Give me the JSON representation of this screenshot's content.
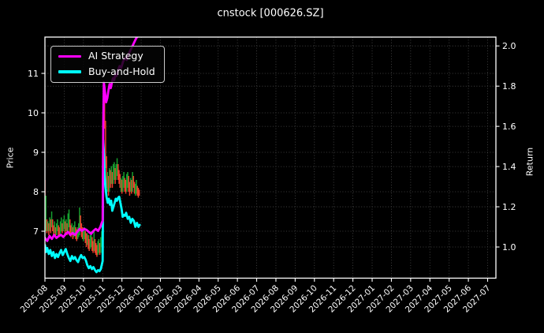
{
  "page": {
    "title": "cnstock [000626.SZ]"
  },
  "legend": {
    "items": [
      {
        "label": "AI Strategy",
        "color": "#ff00ff"
      },
      {
        "label": "Buy-and-Hold",
        "color": "#00ffff"
      }
    ]
  },
  "chart_data": {
    "type": "line",
    "title": "cnstock [000626.SZ]",
    "grid": true,
    "legend_position": "upper left",
    "background": "#000000",
    "frame_color": "#ffffff",
    "grid_color": "#4d4d4d",
    "x_unit": "months since 2025-08",
    "xlim": [
      0,
      23.43
    ],
    "x_ticks": [
      "2025-08",
      "2025-09",
      "2025-10",
      "2025-11",
      "2025-12",
      "2026-01",
      "2026-02",
      "2026-03",
      "2026-04",
      "2026-05",
      "2026-06",
      "2026-07",
      "2026-08",
      "2026-09",
      "2026-10",
      "2026-11",
      "2026-12",
      "2027-01",
      "2027-02",
      "2027-03",
      "2027-04",
      "2027-05",
      "2027-06",
      "2027-07"
    ],
    "left_axis": {
      "label": "Price",
      "lim": [
        5.81,
        11.92
      ],
      "ticks": [
        7,
        8,
        9,
        10,
        11
      ],
      "tick_labels": [
        "7",
        "8",
        "9",
        "10",
        "11"
      ]
    },
    "right_axis": {
      "label": "Return",
      "lim": [
        0.845,
        2.044
      ],
      "ticks": [
        1.0,
        1.2,
        1.4,
        1.6,
        1.8,
        2.0
      ],
      "tick_labels": [
        "1.0",
        "1.2",
        "1.4",
        "1.6",
        "1.8",
        "2.0"
      ]
    },
    "series": [
      {
        "name": "AI Strategy",
        "axis": "right",
        "color": "#ff00ff",
        "width": 2.8,
        "points": [
          [
            0,
            1.045
          ],
          [
            0.12,
            1.03
          ],
          [
            0.24,
            1.055
          ],
          [
            0.36,
            1.04
          ],
          [
            0.48,
            1.06
          ],
          [
            0.6,
            1.045
          ],
          [
            0.72,
            1.055
          ],
          [
            0.84,
            1.06
          ],
          [
            0.96,
            1.05
          ],
          [
            1.08,
            1.065
          ],
          [
            1.2,
            1.075
          ],
          [
            1.32,
            1.06
          ],
          [
            1.44,
            1.07
          ],
          [
            1.56,
            1.06
          ],
          [
            1.68,
            1.075
          ],
          [
            1.8,
            1.09
          ],
          [
            1.92,
            1.08
          ],
          [
            2.04,
            1.09
          ],
          [
            2.16,
            1.085
          ],
          [
            2.28,
            1.075
          ],
          [
            2.4,
            1.065
          ],
          [
            2.52,
            1.08
          ],
          [
            2.64,
            1.09
          ],
          [
            2.76,
            1.08
          ],
          [
            2.88,
            1.1
          ],
          [
            2.95,
            1.12
          ],
          [
            3.0,
            1.13
          ],
          [
            3.03,
            1.62
          ],
          [
            3.06,
            1.82
          ],
          [
            3.1,
            1.79
          ],
          [
            3.14,
            1.75
          ],
          [
            3.18,
            1.72
          ],
          [
            3.24,
            1.74
          ],
          [
            3.3,
            1.78
          ],
          [
            3.36,
            1.81
          ],
          [
            3.42,
            1.79
          ],
          [
            3.48,
            1.82
          ],
          [
            3.54,
            1.84
          ],
          [
            3.6,
            1.83
          ],
          [
            3.66,
            1.86
          ],
          [
            3.72,
            1.85
          ],
          [
            3.8,
            1.88
          ],
          [
            3.88,
            1.9
          ],
          [
            3.96,
            1.89
          ],
          [
            4.05,
            1.92
          ],
          [
            4.15,
            1.94
          ],
          [
            4.25,
            1.93
          ],
          [
            4.35,
            1.96
          ],
          [
            4.45,
            1.98
          ],
          [
            4.55,
            2.0
          ],
          [
            4.65,
            2.02
          ],
          [
            4.75,
            2.04
          ],
          [
            4.85,
            2.05
          ]
        ]
      },
      {
        "name": "Buy-and-Hold",
        "axis": "right",
        "color": "#00ffff",
        "width": 2.8,
        "points": [
          [
            0,
            1.01
          ],
          [
            0.06,
            0.975
          ],
          [
            0.12,
            0.995
          ],
          [
            0.2,
            0.965
          ],
          [
            0.28,
            0.985
          ],
          [
            0.36,
            0.955
          ],
          [
            0.44,
            0.975
          ],
          [
            0.52,
            0.945
          ],
          [
            0.6,
            0.965
          ],
          [
            0.68,
            0.95
          ],
          [
            0.76,
            0.97
          ],
          [
            0.84,
            0.985
          ],
          [
            0.92,
            0.96
          ],
          [
            1.0,
            0.975
          ],
          [
            1.08,
            0.99
          ],
          [
            1.16,
            0.965
          ],
          [
            1.24,
            0.945
          ],
          [
            1.32,
            0.93
          ],
          [
            1.4,
            0.955
          ],
          [
            1.48,
            0.94
          ],
          [
            1.56,
            0.95
          ],
          [
            1.64,
            0.935
          ],
          [
            1.72,
            0.925
          ],
          [
            1.8,
            0.945
          ],
          [
            1.88,
            0.96
          ],
          [
            1.96,
            0.945
          ],
          [
            2.04,
            0.95
          ],
          [
            2.12,
            0.935
          ],
          [
            2.2,
            0.91
          ],
          [
            2.28,
            0.895
          ],
          [
            2.36,
            0.905
          ],
          [
            2.44,
            0.89
          ],
          [
            2.52,
            0.9
          ],
          [
            2.6,
            0.885
          ],
          [
            2.68,
            0.875
          ],
          [
            2.76,
            0.885
          ],
          [
            2.84,
            0.88
          ],
          [
            2.9,
            0.89
          ],
          [
            2.96,
            0.915
          ],
          [
            3.0,
            0.93
          ],
          [
            3.03,
            1.53
          ],
          [
            3.07,
            1.46
          ],
          [
            3.1,
            1.36
          ],
          [
            3.14,
            1.3
          ],
          [
            3.2,
            1.25
          ],
          [
            3.26,
            1.22
          ],
          [
            3.32,
            1.24
          ],
          [
            3.38,
            1.21
          ],
          [
            3.44,
            1.23
          ],
          [
            3.5,
            1.18
          ],
          [
            3.56,
            1.2
          ],
          [
            3.62,
            1.22
          ],
          [
            3.68,
            1.24
          ],
          [
            3.74,
            1.23
          ],
          [
            3.8,
            1.245
          ],
          [
            3.86,
            1.25
          ],
          [
            3.92,
            1.22
          ],
          [
            3.98,
            1.19
          ],
          [
            4.04,
            1.15
          ],
          [
            4.1,
            1.16
          ],
          [
            4.16,
            1.155
          ],
          [
            4.22,
            1.17
          ],
          [
            4.3,
            1.14
          ],
          [
            4.38,
            1.15
          ],
          [
            4.46,
            1.12
          ],
          [
            4.54,
            1.14
          ],
          [
            4.62,
            1.13
          ],
          [
            4.7,
            1.1
          ],
          [
            4.78,
            1.12
          ],
          [
            4.86,
            1.1
          ],
          [
            4.92,
            1.11
          ]
        ]
      }
    ],
    "price_bars": {
      "axis": "left",
      "up_color": "#16a02e",
      "down_color": "#f0402c",
      "bar_width": 1.5,
      "bars": [
        [
          0.0,
          7.5,
          8.3,
          "r"
        ],
        [
          0.05,
          7.0,
          7.9,
          "g"
        ],
        [
          0.1,
          6.95,
          7.3,
          "r"
        ],
        [
          0.15,
          7.0,
          7.25,
          "g"
        ],
        [
          0.2,
          6.9,
          7.2,
          "r"
        ],
        [
          0.25,
          7.0,
          7.35,
          "g"
        ],
        [
          0.3,
          6.95,
          7.3,
          "r"
        ],
        [
          0.35,
          7.1,
          7.5,
          "g"
        ],
        [
          0.4,
          7.0,
          7.3,
          "r"
        ],
        [
          0.45,
          6.9,
          7.15,
          "r"
        ],
        [
          0.5,
          6.95,
          7.25,
          "g"
        ],
        [
          0.55,
          6.85,
          7.1,
          "r"
        ],
        [
          0.6,
          6.9,
          7.2,
          "g"
        ],
        [
          0.65,
          7.0,
          7.3,
          "g"
        ],
        [
          0.7,
          6.9,
          7.15,
          "r"
        ],
        [
          0.75,
          6.85,
          7.1,
          "r"
        ],
        [
          0.8,
          6.9,
          7.25,
          "g"
        ],
        [
          0.85,
          7.0,
          7.35,
          "g"
        ],
        [
          0.9,
          6.95,
          7.2,
          "r"
        ],
        [
          0.95,
          7.0,
          7.3,
          "g"
        ],
        [
          1.0,
          7.05,
          7.4,
          "g"
        ],
        [
          1.05,
          6.95,
          7.25,
          "r"
        ],
        [
          1.1,
          7.0,
          7.3,
          "g"
        ],
        [
          1.15,
          6.9,
          7.2,
          "r"
        ],
        [
          1.2,
          7.0,
          7.45,
          "g"
        ],
        [
          1.25,
          7.1,
          7.55,
          "g"
        ],
        [
          1.3,
          6.95,
          7.3,
          "r"
        ],
        [
          1.35,
          6.85,
          7.15,
          "r"
        ],
        [
          1.4,
          6.9,
          7.2,
          "g"
        ],
        [
          1.45,
          6.8,
          7.1,
          "r"
        ],
        [
          1.5,
          6.85,
          7.15,
          "g"
        ],
        [
          1.55,
          6.9,
          7.25,
          "g"
        ],
        [
          1.6,
          6.8,
          7.1,
          "r"
        ],
        [
          1.65,
          6.75,
          7.05,
          "r"
        ],
        [
          1.7,
          6.8,
          7.1,
          "g"
        ],
        [
          1.75,
          6.85,
          7.2,
          "g"
        ],
        [
          1.8,
          6.9,
          7.6,
          "g"
        ],
        [
          1.85,
          7.0,
          7.4,
          "r"
        ],
        [
          1.9,
          6.85,
          7.2,
          "r"
        ],
        [
          1.95,
          6.8,
          7.1,
          "r"
        ],
        [
          2.0,
          6.75,
          7.05,
          "g"
        ],
        [
          2.05,
          6.8,
          7.1,
          "g"
        ],
        [
          2.1,
          6.7,
          7.0,
          "r"
        ],
        [
          2.15,
          6.6,
          6.95,
          "r"
        ],
        [
          2.2,
          6.65,
          6.95,
          "g"
        ],
        [
          2.25,
          6.55,
          6.9,
          "r"
        ],
        [
          2.3,
          6.5,
          6.8,
          "r"
        ],
        [
          2.35,
          6.55,
          6.9,
          "g"
        ],
        [
          2.4,
          6.6,
          7.0,
          "g"
        ],
        [
          2.45,
          6.5,
          6.85,
          "r"
        ],
        [
          2.5,
          6.45,
          6.75,
          "r"
        ],
        [
          2.55,
          6.5,
          7.05,
          "g"
        ],
        [
          2.6,
          6.45,
          6.8,
          "r"
        ],
        [
          2.65,
          6.4,
          6.7,
          "r"
        ],
        [
          2.7,
          6.35,
          6.65,
          "r"
        ],
        [
          2.75,
          6.4,
          6.75,
          "g"
        ],
        [
          2.8,
          6.45,
          6.8,
          "g"
        ],
        [
          2.85,
          6.4,
          6.7,
          "r"
        ],
        [
          2.9,
          6.45,
          6.85,
          "g"
        ],
        [
          2.95,
          6.6,
          7.0,
          "g"
        ],
        [
          3.0,
          6.9,
          9.0,
          "g"
        ],
        [
          3.05,
          8.8,
          10.75,
          "g"
        ],
        [
          3.1,
          9.6,
          10.7,
          "r"
        ],
        [
          3.15,
          8.6,
          9.8,
          "r"
        ],
        [
          3.2,
          8.1,
          8.9,
          "r"
        ],
        [
          3.25,
          8.0,
          8.5,
          "g"
        ],
        [
          3.3,
          7.9,
          8.4,
          "r"
        ],
        [
          3.35,
          8.0,
          8.6,
          "g"
        ],
        [
          3.4,
          8.1,
          8.55,
          "r"
        ],
        [
          3.45,
          8.2,
          8.65,
          "g"
        ],
        [
          3.5,
          8.1,
          8.5,
          "r"
        ],
        [
          3.55,
          8.2,
          8.7,
          "g"
        ],
        [
          3.6,
          8.3,
          8.75,
          "g"
        ],
        [
          3.65,
          8.2,
          8.6,
          "r"
        ],
        [
          3.7,
          8.3,
          8.7,
          "g"
        ],
        [
          3.75,
          8.4,
          8.85,
          "g"
        ],
        [
          3.8,
          8.3,
          8.7,
          "r"
        ],
        [
          3.85,
          8.2,
          8.55,
          "r"
        ],
        [
          3.9,
          8.1,
          8.45,
          "r"
        ],
        [
          3.95,
          8.0,
          8.35,
          "g"
        ],
        [
          4.0,
          7.95,
          8.3,
          "r"
        ],
        [
          4.05,
          8.0,
          8.4,
          "g"
        ],
        [
          4.1,
          8.1,
          8.5,
          "g"
        ],
        [
          4.15,
          8.0,
          8.35,
          "r"
        ],
        [
          4.2,
          7.95,
          8.3,
          "r"
        ],
        [
          4.25,
          8.0,
          8.45,
          "g"
        ],
        [
          4.3,
          8.1,
          8.5,
          "g"
        ],
        [
          4.35,
          8.0,
          8.4,
          "r"
        ],
        [
          4.4,
          7.9,
          8.25,
          "r"
        ],
        [
          4.45,
          8.0,
          8.35,
          "g"
        ],
        [
          4.5,
          7.95,
          8.3,
          "r"
        ],
        [
          4.55,
          8.0,
          8.5,
          "g"
        ],
        [
          4.6,
          8.1,
          8.4,
          "r"
        ],
        [
          4.65,
          7.95,
          8.25,
          "r"
        ],
        [
          4.7,
          7.9,
          8.2,
          "g"
        ],
        [
          4.75,
          7.95,
          8.3,
          "g"
        ],
        [
          4.8,
          7.9,
          8.15,
          "r"
        ],
        [
          4.85,
          7.85,
          8.1,
          "r"
        ],
        [
          4.9,
          7.9,
          8.05,
          "r"
        ]
      ]
    }
  }
}
